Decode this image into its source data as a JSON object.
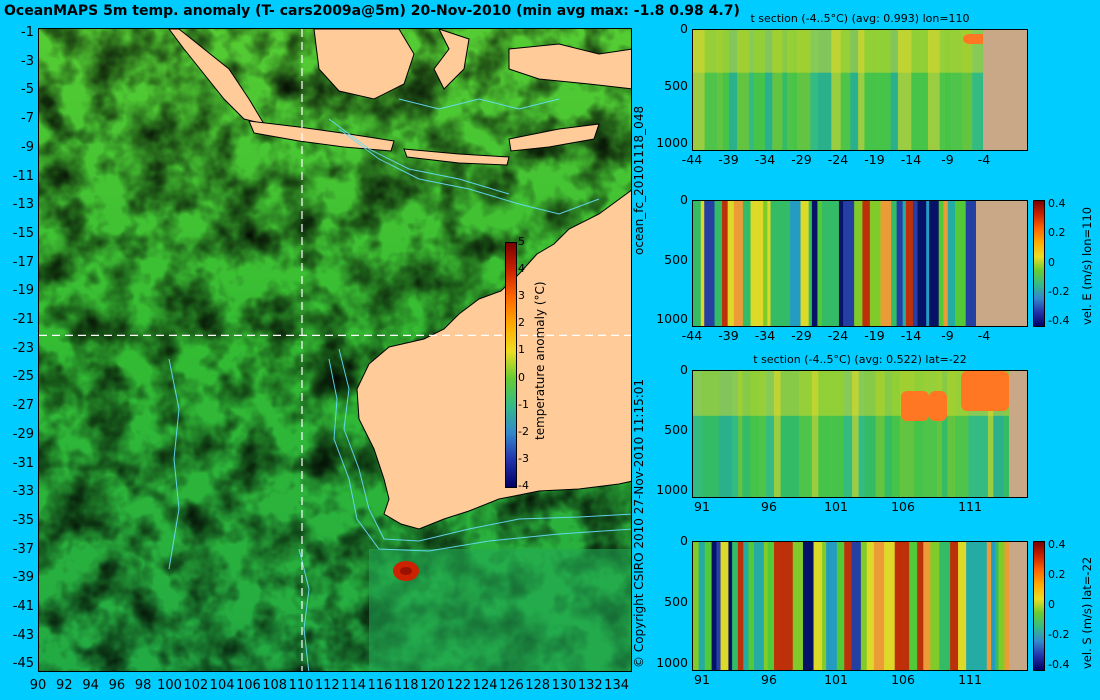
{
  "title": "OceanMAPS 5m temp. anomaly (T- cars2009a@5m) 20-Nov-2010 (min avg max: -1.8 0.98 4.7)",
  "side_texts": {
    "copyright": "© Copyright CSIRO 2010   27-Nov-2010 11:15:01",
    "forecast_id": "ocean_fc_20101118_048"
  },
  "main_map": {
    "lat_ticks": [
      "-1",
      "-3",
      "-5",
      "-7",
      "-9",
      "-11",
      "-13",
      "-15",
      "-17",
      "-19",
      "-21",
      "-23",
      "-25",
      "-27",
      "-29",
      "-31",
      "-33",
      "-35",
      "-37",
      "-39",
      "-41",
      "-43",
      "-45"
    ],
    "lon_ticks": [
      "90",
      "92",
      "94",
      "96",
      "98",
      "100",
      "102",
      "104",
      "106",
      "108",
      "110",
      "112",
      "114",
      "116",
      "118",
      "120",
      "122",
      "124",
      "126",
      "128",
      "130",
      "132",
      "134"
    ],
    "section_lon_marker": "110",
    "section_lat_marker": "-22",
    "colorbar": {
      "label": "temperature anomaly (°C)",
      "ticks": [
        "5",
        "4",
        "3",
        "2",
        "1",
        "0",
        "-1",
        "-2",
        "-3",
        "-4"
      ]
    },
    "colors": {
      "land": "#ffcc99",
      "ocean_base": "#33cc33",
      "warm": "#ff9933",
      "hot": "#cc2200",
      "contour": "#66ddff"
    }
  },
  "panels": [
    {
      "title": "t section (-4..5°C) (avg: 0.993) lon=110",
      "y_ticks": [
        "0",
        "500",
        "1000"
      ],
      "x_ticks": [
        "-44",
        "-39",
        "-34",
        "-29",
        "-24",
        "-19",
        "-14",
        "-9",
        "-4"
      ],
      "colorbar": null,
      "side_label": ""
    },
    {
      "title": "",
      "y_ticks": [
        "0",
        "500",
        "1000"
      ],
      "x_ticks": [
        "-44",
        "-39",
        "-34",
        "-29",
        "-24",
        "-19",
        "-14",
        "-9",
        "-4"
      ],
      "colorbar": {
        "ticks": [
          "0.4",
          "0.2",
          "0",
          "-0.2",
          "-0.4"
        ],
        "label": "vel. E (m/s) lon=110"
      }
    },
    {
      "title": "t section (-4..5°C) (avg: 0.522) lat=-22",
      "y_ticks": [
        "0",
        "500",
        "1000"
      ],
      "x_ticks": [
        "91",
        "96",
        "101",
        "106",
        "111"
      ],
      "colorbar": null
    },
    {
      "title": "",
      "y_ticks": [
        "0",
        "500",
        "1000"
      ],
      "x_ticks": [
        "91",
        "96",
        "101",
        "106",
        "111"
      ],
      "colorbar": {
        "ticks": [
          "0.4",
          "0.2",
          "0",
          "-0.2",
          "-0.4"
        ],
        "label": "vel. S (m/s) lat=-22"
      }
    }
  ]
}
